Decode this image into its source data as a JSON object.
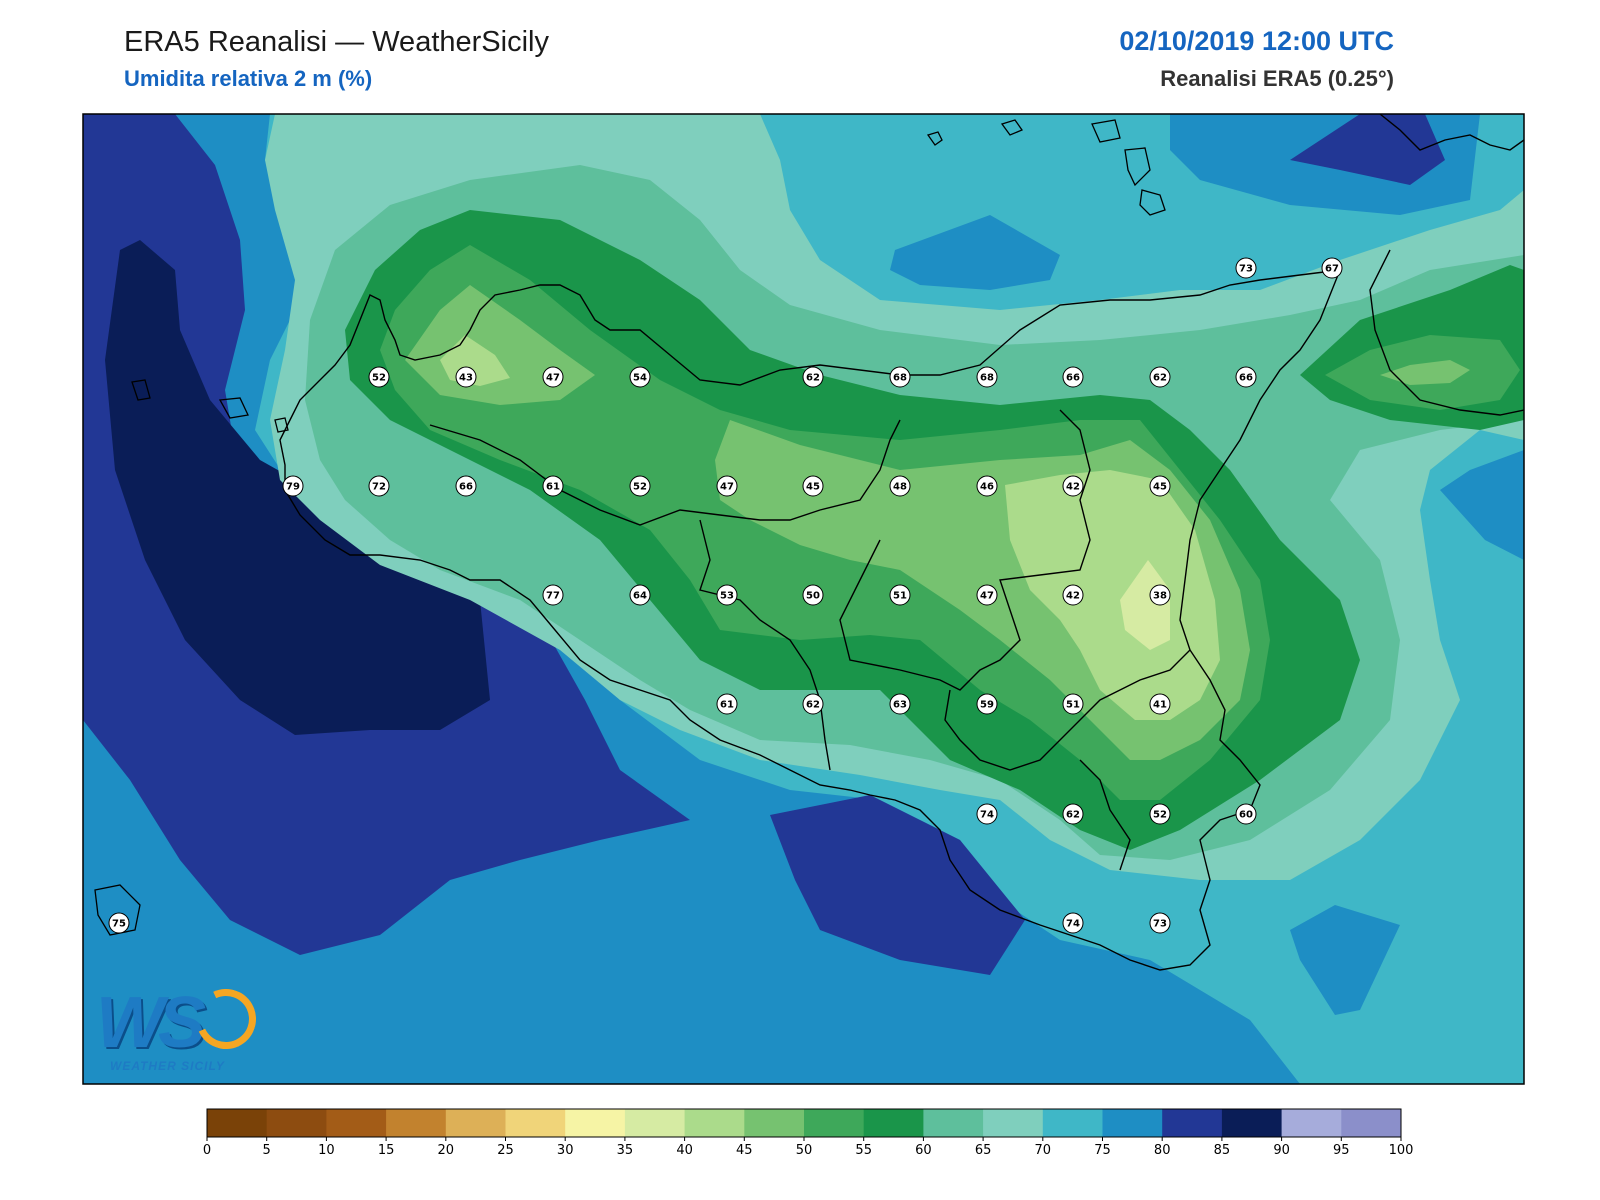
{
  "header": {
    "title": "ERA5 Reanalisi — WeatherSicily",
    "subtitle": "Umidita relativa 2 m (%)",
    "datetime": "02/10/2019 12:00 UTC",
    "source": "Reanalisi ERA5 (0.25°)"
  },
  "logo": {
    "text": "WS",
    "caption": "WEATHER SICILY"
  },
  "colorbar": {
    "ticks": [
      "0",
      "5",
      "10",
      "15",
      "20",
      "25",
      "30",
      "35",
      "40",
      "45",
      "50",
      "55",
      "60",
      "65",
      "70",
      "75",
      "80",
      "85",
      "90",
      "95",
      "100"
    ],
    "colors": [
      "#7a4208",
      "#8d4c10",
      "#a35c17",
      "#c2822e",
      "#ddb057",
      "#f0d479",
      "#f6f4a5",
      "#d6eba3",
      "#abdb8b",
      "#76c270",
      "#3ea85a",
      "#1a954a",
      "#5ebf9c",
      "#7fcfbd",
      "#3fb7c7",
      "#1e8ec4",
      "#223795",
      "#0a1d57",
      "#a6acdb",
      "#8b8fca"
    ]
  },
  "stations": [
    {
      "id": "s1",
      "v": "73"
    },
    {
      "id": "s2",
      "v": "67"
    },
    {
      "id": "s3",
      "v": "52"
    },
    {
      "id": "s4",
      "v": "43"
    },
    {
      "id": "s5",
      "v": "47"
    },
    {
      "id": "s6",
      "v": "54"
    },
    {
      "id": "s7",
      "v": "62"
    },
    {
      "id": "s8",
      "v": "68"
    },
    {
      "id": "s9",
      "v": "68"
    },
    {
      "id": "s10",
      "v": "66"
    },
    {
      "id": "s11",
      "v": "62"
    },
    {
      "id": "s12",
      "v": "66"
    },
    {
      "id": "s13",
      "v": "79"
    },
    {
      "id": "s14",
      "v": "72"
    },
    {
      "id": "s15",
      "v": "66"
    },
    {
      "id": "s16",
      "v": "61"
    },
    {
      "id": "s17",
      "v": "52"
    },
    {
      "id": "s18",
      "v": "47"
    },
    {
      "id": "s19",
      "v": "45"
    },
    {
      "id": "s20",
      "v": "48"
    },
    {
      "id": "s21",
      "v": "46"
    },
    {
      "id": "s22",
      "v": "42"
    },
    {
      "id": "s23",
      "v": "45"
    },
    {
      "id": "s24",
      "v": "77"
    },
    {
      "id": "s25",
      "v": "64"
    },
    {
      "id": "s26",
      "v": "53"
    },
    {
      "id": "s27",
      "v": "50"
    },
    {
      "id": "s28",
      "v": "51"
    },
    {
      "id": "s29",
      "v": "47"
    },
    {
      "id": "s30",
      "v": "42"
    },
    {
      "id": "s31",
      "v": "38"
    },
    {
      "id": "s32",
      "v": "61"
    },
    {
      "id": "s33",
      "v": "62"
    },
    {
      "id": "s34",
      "v": "63"
    },
    {
      "id": "s35",
      "v": "59"
    },
    {
      "id": "s36",
      "v": "51"
    },
    {
      "id": "s37",
      "v": "41"
    },
    {
      "id": "s38",
      "v": "74"
    },
    {
      "id": "s39",
      "v": "62"
    },
    {
      "id": "s40",
      "v": "52"
    },
    {
      "id": "s41",
      "v": "60"
    },
    {
      "id": "s42",
      "v": "74"
    },
    {
      "id": "s43",
      "v": "73"
    },
    {
      "id": "s44",
      "v": "75"
    }
  ]
}
